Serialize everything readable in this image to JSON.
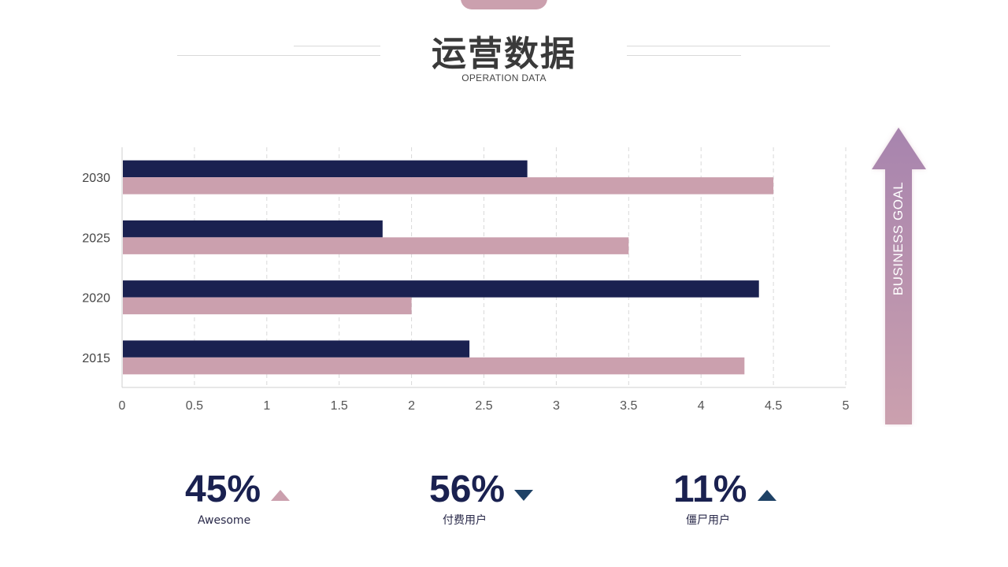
{
  "header": {
    "title": "运营数据",
    "subtitle": "OPERATION DATA"
  },
  "colors": {
    "series_dark": "#1A2150",
    "series_pink": "#CBA0AE",
    "arrow_top": "#A784AE",
    "arrow_bottom": "#CBA0AE",
    "indicator_navy": "#1F4266"
  },
  "goal_arrow": {
    "label": "BUSINESS GOAL",
    "icon": "up-arrow-icon"
  },
  "chart_data": {
    "type": "bar",
    "orientation": "horizontal",
    "categories": [
      "2015",
      "2020",
      "2025",
      "2030"
    ],
    "series": [
      {
        "values": [
          2.4,
          4.4,
          1.8,
          2.8
        ]
      },
      {
        "values": [
          4.3,
          2.0,
          3.5,
          4.5
        ]
      }
    ],
    "xlim": [
      0,
      5
    ],
    "x_ticks": [
      "0",
      "0.5",
      "1",
      "1.5",
      "2",
      "2.5",
      "3",
      "3.5",
      "4",
      "4.5",
      "5"
    ],
    "grid": "vertical dashed",
    "legend": "none"
  },
  "stats": [
    {
      "value": "45%",
      "label": "Awesome",
      "trend": "up",
      "icon": "triangle-up-icon"
    },
    {
      "value": "56%",
      "label": "付费用户",
      "trend": "down",
      "icon": "triangle-down-icon"
    },
    {
      "value": "11%",
      "label": "僵尸用户",
      "trend": "up",
      "icon": "triangle-up-icon"
    }
  ]
}
